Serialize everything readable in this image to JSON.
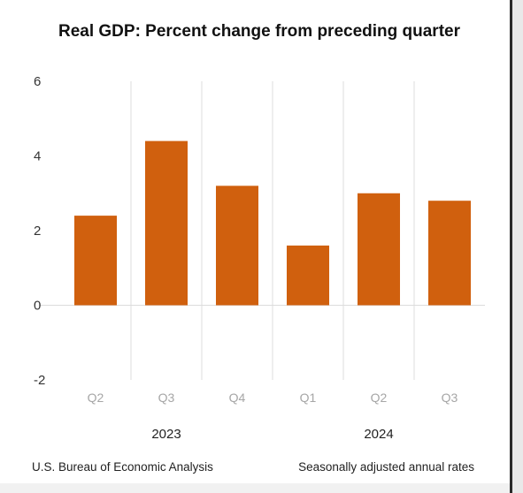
{
  "chart_data": {
    "type": "bar",
    "title": "Real GDP:  Percent change from preceding quarter",
    "categories": [
      "Q2",
      "Q3",
      "Q4",
      "Q1",
      "Q2",
      "Q3"
    ],
    "groups": [
      {
        "label": "2023",
        "categories": [
          "Q2",
          "Q3",
          "Q4"
        ]
      },
      {
        "label": "2024",
        "categories": [
          "Q1",
          "Q2",
          "Q3"
        ]
      }
    ],
    "values": [
      2.4,
      4.4,
      3.2,
      1.6,
      3.0,
      2.8
    ],
    "yticks": [
      "6",
      "4",
      "2",
      "0",
      "-2"
    ],
    "ylim": [
      -2,
      6
    ],
    "grid": "vertical separators between quarters",
    "bar_color": "#d0600e",
    "source": "U.S. Bureau of Economic Analysis",
    "note": "Seasonally adjusted annual rates"
  }
}
